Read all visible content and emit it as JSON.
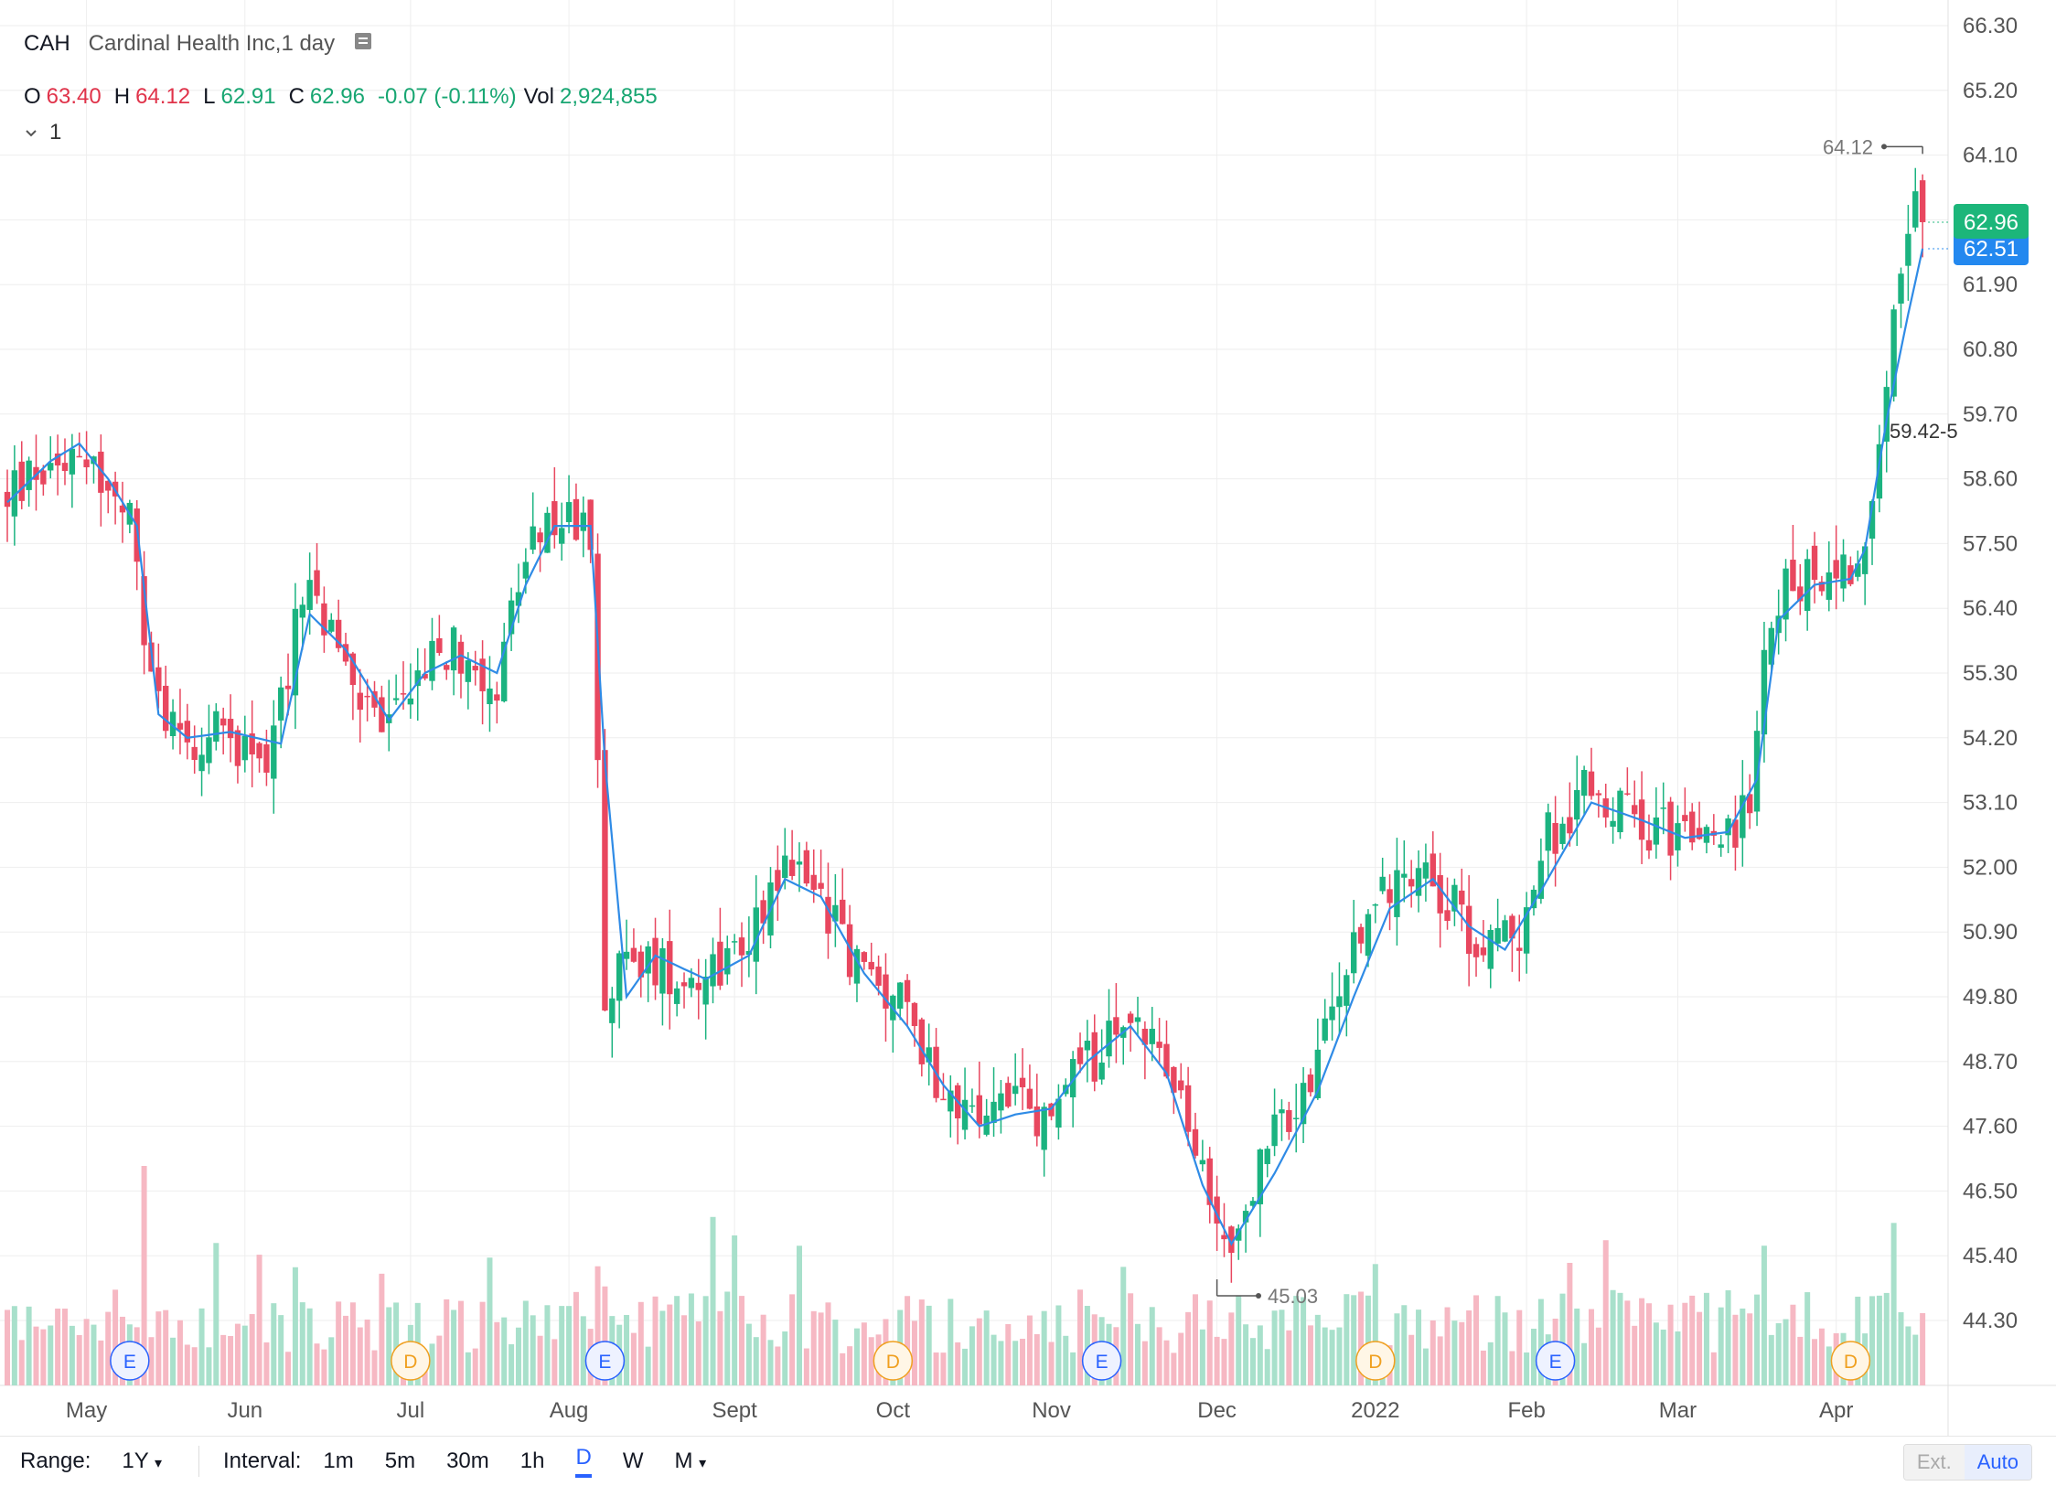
{
  "legend": {
    "symbol": "CAH",
    "name": "Cardinal Health Inc,1 day",
    "o_label": "O",
    "o": "63.40",
    "h_label": "H",
    "h": "64.12",
    "l_label": "L",
    "l": "62.91",
    "c_label": "C",
    "c": "62.96",
    "change": "-0.07 (-0.11%)",
    "vol_label": "Vol",
    "vol": "2,924,855",
    "indicator_count": "1"
  },
  "toolbar": {
    "range_label": "Range:",
    "range_value": "1Y",
    "interval_label": "Interval:",
    "intervals": [
      "1m",
      "5m",
      "30m",
      "1h",
      "D",
      "W",
      "M"
    ],
    "active_interval": "D",
    "ext_label": "Ext.",
    "auto_label": "Auto"
  },
  "colors": {
    "up": "#1bb380",
    "down": "#e8475f",
    "ma_line": "#2f8be6",
    "current_price_bg": "#1cb67a",
    "ma_price_bg": "#2388ef",
    "grid": "#eeeeee"
  },
  "chart_data": {
    "type": "candlestick",
    "series": [
      {
        "name": "CAH"
      },
      {
        "name": "1"
      }
    ],
    "y_ticks": [
      "66.30",
      "65.20",
      "64.10",
      "63.00",
      "61.90",
      "60.80",
      "59.70",
      "58.60",
      "57.50",
      "56.40",
      "55.30",
      "54.20",
      "53.10",
      "52.00",
      "50.90",
      "49.80",
      "48.70",
      "47.60",
      "46.50",
      "45.40",
      "44.30"
    ],
    "y_range": [
      43.2,
      66.3
    ],
    "x_labels": [
      "May",
      "Jun",
      "Jul",
      "Aug",
      "Sept",
      "Oct",
      "Nov",
      "Dec",
      "2022",
      "Feb",
      "Mar",
      "Apr"
    ],
    "x_label_day_index": [
      11,
      33,
      56,
      78,
      101,
      123,
      145,
      168,
      190,
      211,
      232,
      254
    ],
    "price_path": [
      [
        0,
        58.3
      ],
      [
        10,
        59.3
      ],
      [
        14,
        58.3
      ],
      [
        17,
        57.8
      ],
      [
        20,
        55.0
      ],
      [
        24,
        54.3
      ],
      [
        30,
        54.2
      ],
      [
        37,
        54.0
      ],
      [
        41,
        56.8
      ],
      [
        46,
        55.6
      ],
      [
        52,
        54.3
      ],
      [
        57,
        55.4
      ],
      [
        62,
        55.7
      ],
      [
        68,
        55.2
      ],
      [
        72,
        57.2
      ],
      [
        76,
        57.9
      ],
      [
        81,
        57.7
      ],
      [
        83,
        50.0
      ],
      [
        87,
        50.4
      ],
      [
        95,
        50.2
      ],
      [
        102,
        50.6
      ],
      [
        107,
        52.0
      ],
      [
        112,
        51.8
      ],
      [
        118,
        50.3
      ],
      [
        124,
        49.7
      ],
      [
        129,
        48.5
      ],
      [
        134,
        47.6
      ],
      [
        139,
        48.2
      ],
      [
        143,
        47.5
      ],
      [
        148,
        48.4
      ],
      [
        153,
        49.0
      ],
      [
        158,
        49.4
      ],
      [
        163,
        47.9
      ],
      [
        167,
        46.2
      ],
      [
        170,
        45.6
      ],
      [
        175,
        47.2
      ],
      [
        181,
        48.3
      ],
      [
        185,
        49.9
      ],
      [
        190,
        51.5
      ],
      [
        196,
        52.2
      ],
      [
        201,
        51.3
      ],
      [
        205,
        50.6
      ],
      [
        210,
        51.0
      ],
      [
        214,
        52.5
      ],
      [
        220,
        53.4
      ],
      [
        226,
        52.8
      ],
      [
        232,
        52.6
      ],
      [
        237,
        52.3
      ],
      [
        242,
        53.0
      ],
      [
        245,
        56.5
      ],
      [
        250,
        57.0
      ],
      [
        255,
        57.1
      ],
      [
        258,
        57.3
      ],
      [
        260,
        59.4
      ],
      [
        262,
        61.8
      ],
      [
        264,
        63.2
      ],
      [
        266,
        62.96
      ]
    ],
    "ma_path": [
      [
        0,
        58.2
      ],
      [
        6,
        58.9
      ],
      [
        10,
        59.2
      ],
      [
        14,
        58.6
      ],
      [
        18,
        57.8
      ],
      [
        21,
        54.6
      ],
      [
        25,
        54.2
      ],
      [
        31,
        54.3
      ],
      [
        38,
        54.1
      ],
      [
        42,
        56.3
      ],
      [
        47,
        55.7
      ],
      [
        53,
        54.5
      ],
      [
        58,
        55.3
      ],
      [
        63,
        55.6
      ],
      [
        68,
        55.3
      ],
      [
        72,
        56.8
      ],
      [
        76,
        57.8
      ],
      [
        81,
        57.8
      ],
      [
        83,
        53.8
      ],
      [
        86,
        49.8
      ],
      [
        90,
        50.5
      ],
      [
        97,
        50.1
      ],
      [
        103,
        50.5
      ],
      [
        108,
        51.8
      ],
      [
        113,
        51.5
      ],
      [
        119,
        50.2
      ],
      [
        125,
        49.3
      ],
      [
        130,
        48.3
      ],
      [
        135,
        47.6
      ],
      [
        140,
        47.8
      ],
      [
        145,
        47.9
      ],
      [
        150,
        48.7
      ],
      [
        156,
        49.3
      ],
      [
        161,
        48.5
      ],
      [
        166,
        46.6
      ],
      [
        170,
        45.6
      ],
      [
        176,
        46.8
      ],
      [
        182,
        48.2
      ],
      [
        187,
        49.8
      ],
      [
        192,
        51.3
      ],
      [
        198,
        51.8
      ],
      [
        203,
        51.0
      ],
      [
        208,
        50.6
      ],
      [
        213,
        51.6
      ],
      [
        220,
        53.1
      ],
      [
        227,
        52.8
      ],
      [
        233,
        52.5
      ],
      [
        239,
        52.6
      ],
      [
        243,
        53.5
      ],
      [
        246,
        56.2
      ],
      [
        251,
        56.8
      ],
      [
        256,
        56.9
      ],
      [
        258,
        57.4
      ],
      [
        261,
        59.6
      ],
      [
        264,
        61.4
      ],
      [
        266,
        62.51
      ]
    ],
    "total_days": 267,
    "current_price": "62.96",
    "ma_value": "62.51",
    "high_annotation": "64.12",
    "low_annotation": "45.03",
    "level_annotation": "59.42-5",
    "events": [
      {
        "label": "E",
        "day": 17,
        "type": "earnings"
      },
      {
        "label": "D",
        "day": 56,
        "type": "dividend"
      },
      {
        "label": "E",
        "day": 83,
        "type": "earnings"
      },
      {
        "label": "D",
        "day": 123,
        "type": "dividend"
      },
      {
        "label": "E",
        "day": 152,
        "type": "earnings"
      },
      {
        "label": "D",
        "day": 190,
        "type": "dividend"
      },
      {
        "label": "E",
        "day": 215,
        "type": "earnings"
      },
      {
        "label": "D",
        "day": 256,
        "type": "dividend"
      }
    ]
  }
}
